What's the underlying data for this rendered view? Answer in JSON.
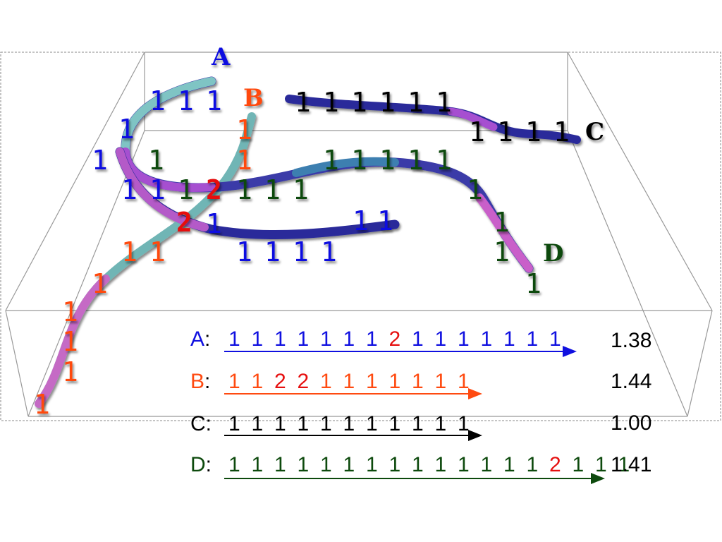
{
  "colors": {
    "A": "#1010e0",
    "B": "#ff4a10",
    "C": "#000000",
    "D": "#0d4a0d",
    "two": "#e61010",
    "box": "#888888",
    "tube_teal": "#7fc4c4",
    "tube_magenta": "#c95fc9",
    "tube_navy": "#2a2a9a"
  },
  "strand_labels": {
    "A": "A",
    "B": "B",
    "C": "C",
    "D": "D"
  },
  "scene_labels": {
    "A": [
      "1",
      "1",
      "1",
      "1",
      "1",
      "1",
      "1",
      "1",
      "1",
      "1",
      "1",
      "1",
      "1",
      "1",
      "1",
      "1",
      "1"
    ],
    "B": [
      "1",
      "1",
      "1",
      "1",
      "1",
      "1",
      "1",
      "1",
      "1",
      "1",
      "1"
    ],
    "C": [
      "1",
      "1",
      "1",
      "1",
      "1",
      "1",
      "1",
      "1",
      "1",
      "1",
      "1"
    ],
    "D": [
      "1",
      "1",
      "1",
      "1",
      "1",
      "1",
      "1",
      "1",
      "1",
      "1",
      "1",
      "1",
      "1",
      "1",
      "1",
      "1"
    ],
    "twos": [
      "2",
      "2"
    ]
  },
  "sequences": [
    {
      "name": "A",
      "digits": [
        "1",
        "1",
        "1",
        "1",
        "1",
        "1",
        "1",
        "2",
        "1",
        "1",
        "1",
        "1",
        "1",
        "1",
        "1"
      ],
      "value": "1.38"
    },
    {
      "name": "B",
      "digits": [
        "1",
        "1",
        "2",
        "2",
        "1",
        "1",
        "1",
        "1",
        "1",
        "1",
        "1"
      ],
      "value": "1.44"
    },
    {
      "name": "C",
      "digits": [
        "1",
        "1",
        "1",
        "1",
        "1",
        "1",
        "1",
        "1",
        "1",
        "1",
        "1"
      ],
      "value": "1.00"
    },
    {
      "name": "D",
      "digits": [
        "1",
        "1",
        "1",
        "1",
        "1",
        "1",
        "1",
        "1",
        "1",
        "1",
        "1",
        "1",
        "1",
        "1",
        "2",
        "1",
        "1",
        "1"
      ],
      "value": "1.41"
    }
  ]
}
